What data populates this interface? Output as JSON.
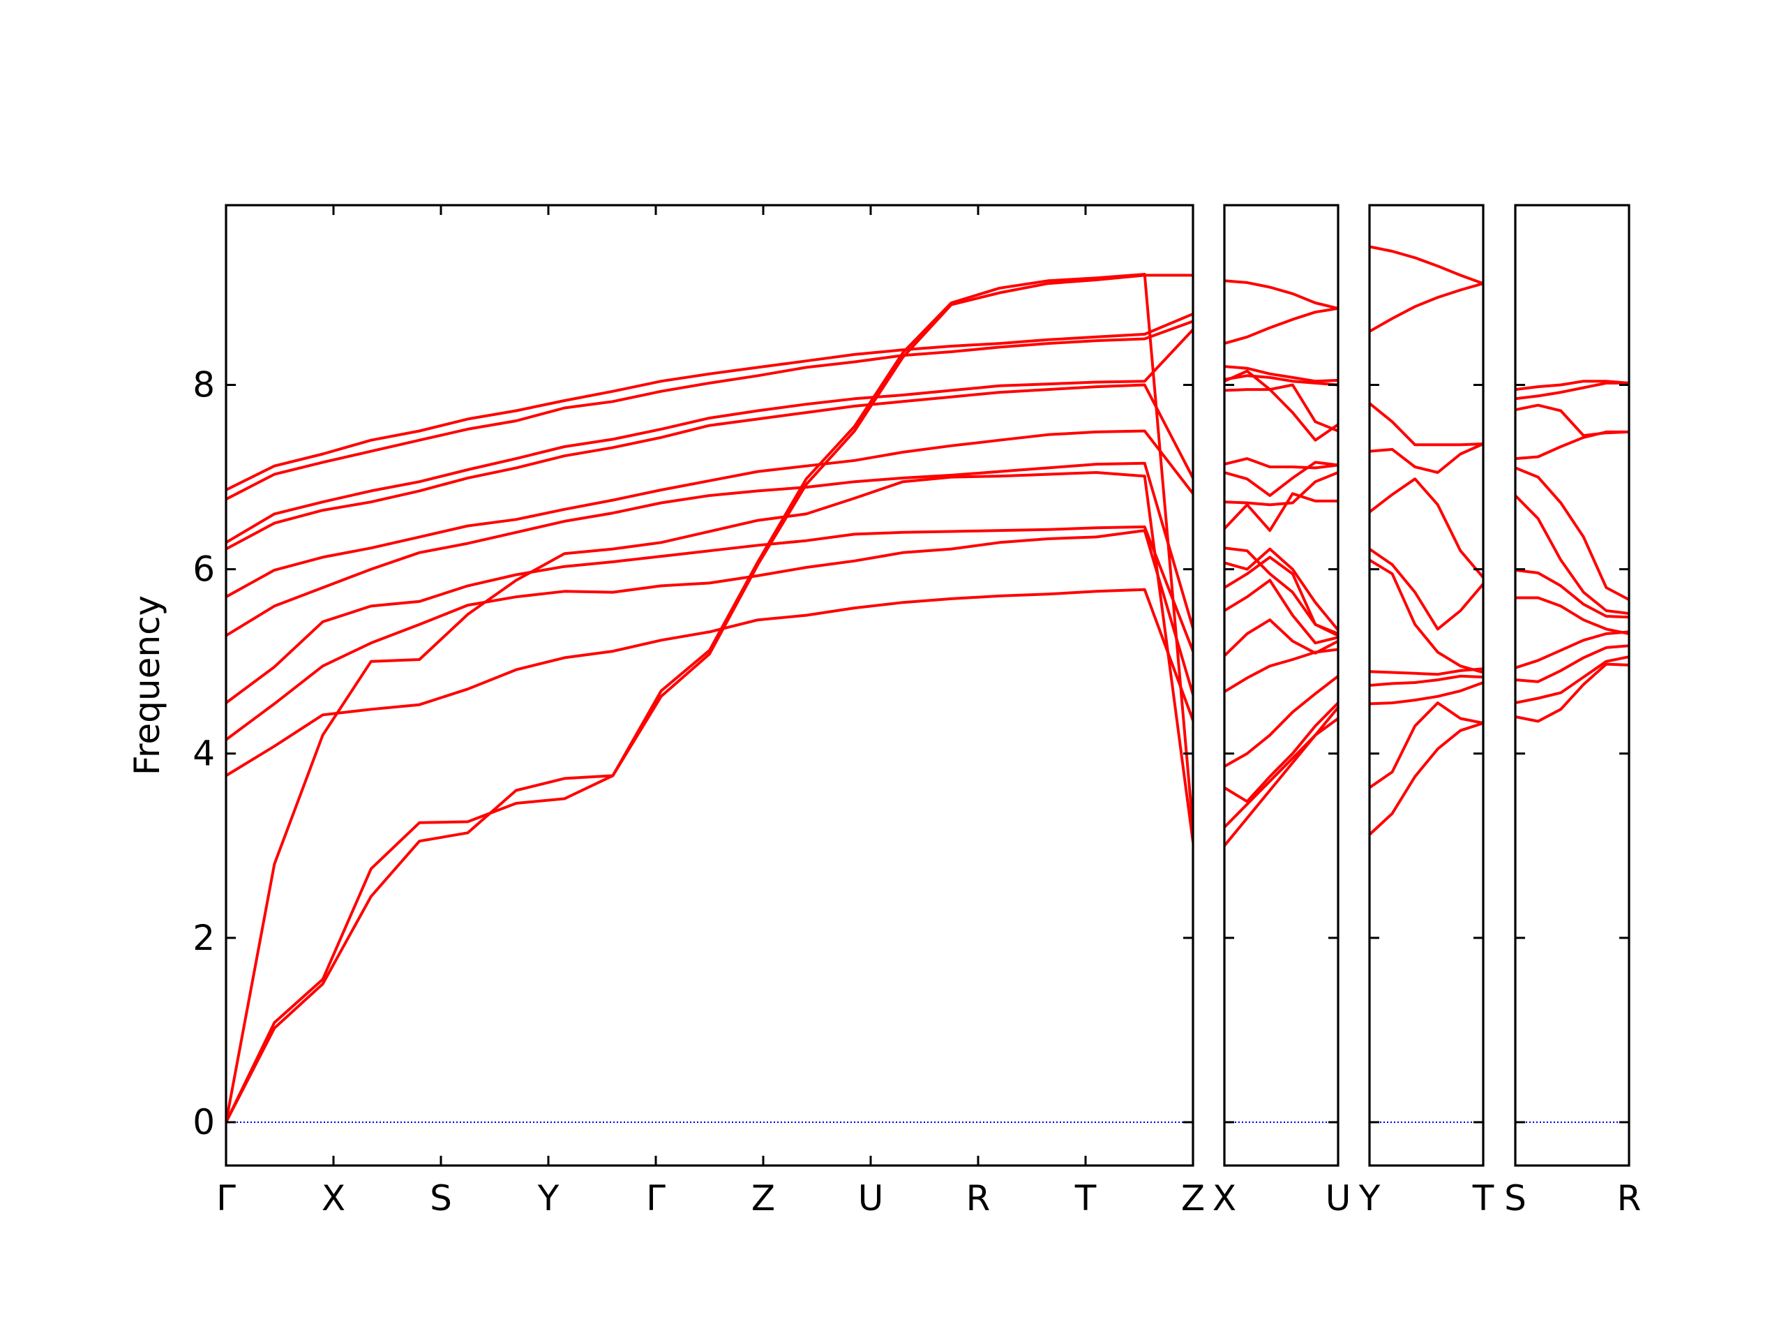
{
  "chart_data": {
    "type": "line",
    "ylabel": "Frequency",
    "ylim": [
      -0.47,
      9.95
    ],
    "yticks": [
      0,
      2,
      4,
      6,
      8
    ],
    "ytick_labels": [
      "0",
      "2",
      "4",
      "6",
      "8"
    ],
    "zero_line_color": "#0000ff",
    "band_color": "#ff0000",
    "frame_color": "#000000",
    "grid": false,
    "panels": [
      {
        "xticks": [
          0,
          1,
          2,
          3,
          4,
          5,
          6,
          7,
          8,
          9
        ],
        "xtick_labels": [
          "Γ",
          "X",
          "S",
          "Y",
          "Γ",
          "Z",
          "U",
          "R",
          "T",
          "Z"
        ],
        "bands": [
          [
            0,
            1.02,
            1.5,
            2.45,
            3.05,
            3.14,
            3.6,
            3.73,
            3.76,
            4.62,
            5.08,
            6.05,
            6.92,
            7.5,
            8.3,
            8.87,
            9.0,
            9.1,
            9.14,
            9.19,
            9.19
          ],
          [
            0,
            1.08,
            1.55,
            2.75,
            3.25,
            3.26,
            3.46,
            3.51,
            3.76,
            4.68,
            5.12,
            6.08,
            6.98,
            7.55,
            8.35,
            8.89,
            9.05,
            9.13,
            9.16,
            9.2,
            3.19
          ],
          [
            0,
            2.8,
            4.2,
            5.0,
            5.02,
            5.51,
            5.88,
            6.17,
            6.22,
            6.29,
            6.41,
            6.53,
            6.6,
            6.77,
            6.95,
            7.0,
            7.01,
            7.03,
            7.05,
            7.01,
            3.04
          ],
          [
            3.76,
            4.08,
            4.42,
            4.48,
            4.53,
            4.7,
            4.91,
            5.04,
            5.11,
            5.23,
            5.32,
            5.45,
            5.5,
            5.58,
            5.64,
            5.68,
            5.71,
            5.73,
            5.76,
            5.78,
            4.36
          ],
          [
            4.15,
            4.54,
            4.95,
            5.2,
            5.4,
            5.61,
            5.7,
            5.76,
            5.75,
            5.82,
            5.85,
            5.93,
            6.02,
            6.09,
            6.18,
            6.22,
            6.29,
            6.33,
            6.35,
            6.42,
            4.64
          ],
          [
            4.55,
            4.94,
            5.43,
            5.6,
            5.65,
            5.82,
            5.94,
            6.03,
            6.08,
            6.14,
            6.2,
            6.26,
            6.31,
            6.38,
            6.4,
            6.41,
            6.42,
            6.43,
            6.45,
            6.46,
            5.11
          ],
          [
            5.28,
            5.6,
            5.8,
            6.0,
            6.18,
            6.28,
            6.4,
            6.52,
            6.61,
            6.72,
            6.8,
            6.85,
            6.89,
            6.95,
            6.99,
            7.02,
            7.06,
            7.1,
            7.14,
            7.15,
            5.36
          ],
          [
            5.7,
            5.99,
            6.13,
            6.23,
            6.35,
            6.47,
            6.54,
            6.65,
            6.75,
            6.86,
            6.96,
            7.06,
            7.12,
            7.18,
            7.27,
            7.34,
            7.4,
            7.46,
            7.49,
            7.5,
            6.82
          ],
          [
            6.22,
            6.5,
            6.64,
            6.73,
            6.85,
            6.99,
            7.1,
            7.23,
            7.32,
            7.43,
            7.56,
            7.63,
            7.7,
            7.77,
            7.82,
            7.87,
            7.92,
            7.95,
            7.98,
            8.0,
            6.99
          ],
          [
            6.29,
            6.6,
            6.73,
            6.85,
            6.95,
            7.08,
            7.2,
            7.33,
            7.41,
            7.52,
            7.64,
            7.72,
            7.79,
            7.85,
            7.89,
            7.94,
            7.99,
            8.01,
            8.03,
            8.04,
            8.6
          ],
          [
            6.76,
            7.03,
            7.16,
            7.28,
            7.4,
            7.52,
            7.61,
            7.75,
            7.82,
            7.93,
            8.02,
            8.1,
            8.19,
            8.25,
            8.32,
            8.36,
            8.41,
            8.45,
            8.48,
            8.5,
            8.69
          ],
          [
            6.86,
            7.12,
            7.25,
            7.4,
            7.5,
            7.63,
            7.72,
            7.83,
            7.93,
            8.04,
            8.12,
            8.19,
            8.26,
            8.33,
            8.38,
            8.42,
            8.45,
            8.49,
            8.52,
            8.55,
            8.77
          ]
        ]
      },
      {
        "xticks": [
          0,
          1
        ],
        "xtick_labels": [
          "X",
          "U"
        ],
        "bands": [
          [
            3.0,
            3.3,
            3.6,
            3.9,
            4.2,
            4.5
          ],
          [
            3.2,
            3.45,
            3.7,
            3.95,
            4.2,
            4.38
          ],
          [
            3.63,
            3.48,
            3.75,
            4.0,
            4.3,
            4.55
          ],
          [
            3.86,
            4.0,
            4.2,
            4.45,
            4.65,
            4.84
          ],
          [
            4.67,
            4.82,
            4.95,
            5.02,
            5.1,
            5.13
          ],
          [
            5.06,
            5.3,
            5.45,
            5.22,
            5.09,
            5.22
          ],
          [
            5.55,
            5.7,
            5.88,
            5.5,
            5.2,
            5.26
          ],
          [
            5.8,
            5.95,
            6.13,
            5.95,
            5.4,
            5.3
          ],
          [
            6.07,
            6.0,
            6.22,
            6.0,
            5.64,
            5.34
          ],
          [
            6.23,
            6.2,
            5.95,
            5.75,
            5.4,
            5.28
          ],
          [
            6.44,
            6.7,
            6.42,
            6.82,
            6.74,
            6.74
          ],
          [
            6.73,
            6.72,
            6.7,
            6.72,
            6.95,
            7.05
          ],
          [
            7.05,
            6.98,
            6.8,
            6.99,
            7.16,
            7.13
          ],
          [
            7.14,
            7.2,
            7.11,
            7.11,
            7.1,
            7.13
          ],
          [
            7.94,
            7.95,
            7.95,
            8.0,
            7.6,
            7.5
          ],
          [
            8.04,
            8.15,
            7.95,
            7.7,
            7.4,
            7.57
          ],
          [
            8.06,
            8.1,
            8.08,
            8.04,
            8.02,
            8.0
          ],
          [
            8.2,
            8.18,
            8.12,
            8.08,
            8.04,
            8.05
          ],
          [
            8.45,
            8.52,
            8.62,
            8.71,
            8.79,
            8.83
          ],
          [
            9.13,
            9.11,
            9.06,
            8.99,
            8.89,
            8.83
          ]
        ]
      },
      {
        "xticks": [
          0,
          1
        ],
        "xtick_labels": [
          "Y",
          "T"
        ],
        "bands": [
          [
            3.12,
            3.35,
            3.75,
            4.05,
            4.25,
            4.33
          ],
          [
            3.63,
            3.8,
            4.3,
            4.55,
            4.38,
            4.33
          ],
          [
            4.54,
            4.55,
            4.58,
            4.62,
            4.68,
            4.77
          ],
          [
            4.74,
            4.76,
            4.77,
            4.8,
            4.84,
            4.83
          ],
          [
            4.89,
            4.88,
            4.87,
            4.86,
            4.9,
            4.92
          ],
          [
            6.1,
            5.95,
            5.4,
            5.1,
            4.95,
            4.88
          ],
          [
            6.22,
            6.05,
            5.75,
            5.35,
            5.55,
            5.84
          ],
          [
            6.62,
            6.81,
            6.98,
            6.7,
            6.2,
            5.91
          ],
          [
            7.28,
            7.3,
            7.11,
            7.05,
            7.25,
            7.36
          ],
          [
            7.8,
            7.6,
            7.35,
            7.35,
            7.35,
            7.36
          ],
          [
            8.58,
            8.72,
            8.85,
            8.95,
            9.03,
            9.1
          ],
          [
            9.5,
            9.45,
            9.38,
            9.29,
            9.19,
            9.1
          ]
        ]
      },
      {
        "xticks": [
          0,
          1
        ],
        "xtick_labels": [
          "S",
          "R"
        ],
        "bands": [
          [
            4.4,
            4.35,
            4.48,
            4.75,
            4.97,
            4.96
          ],
          [
            4.55,
            4.6,
            4.66,
            4.83,
            5.0,
            5.05
          ],
          [
            4.8,
            4.78,
            4.9,
            5.04,
            5.15,
            5.17
          ],
          [
            4.93,
            5.01,
            5.12,
            5.23,
            5.3,
            5.32
          ],
          [
            5.69,
            5.69,
            5.6,
            5.45,
            5.35,
            5.3
          ],
          [
            5.99,
            5.96,
            5.82,
            5.62,
            5.49,
            5.48
          ],
          [
            6.8,
            6.55,
            6.1,
            5.75,
            5.55,
            5.52
          ],
          [
            7.1,
            7.0,
            6.72,
            6.35,
            5.8,
            5.67
          ],
          [
            7.2,
            7.22,
            7.33,
            7.43,
            7.49,
            7.49
          ],
          [
            7.73,
            7.78,
            7.72,
            7.45,
            7.48,
            7.49
          ],
          [
            7.85,
            7.88,
            7.92,
            7.97,
            8.02,
            8.02
          ],
          [
            7.95,
            7.98,
            8.0,
            8.04,
            8.04,
            8.02
          ]
        ]
      }
    ]
  }
}
